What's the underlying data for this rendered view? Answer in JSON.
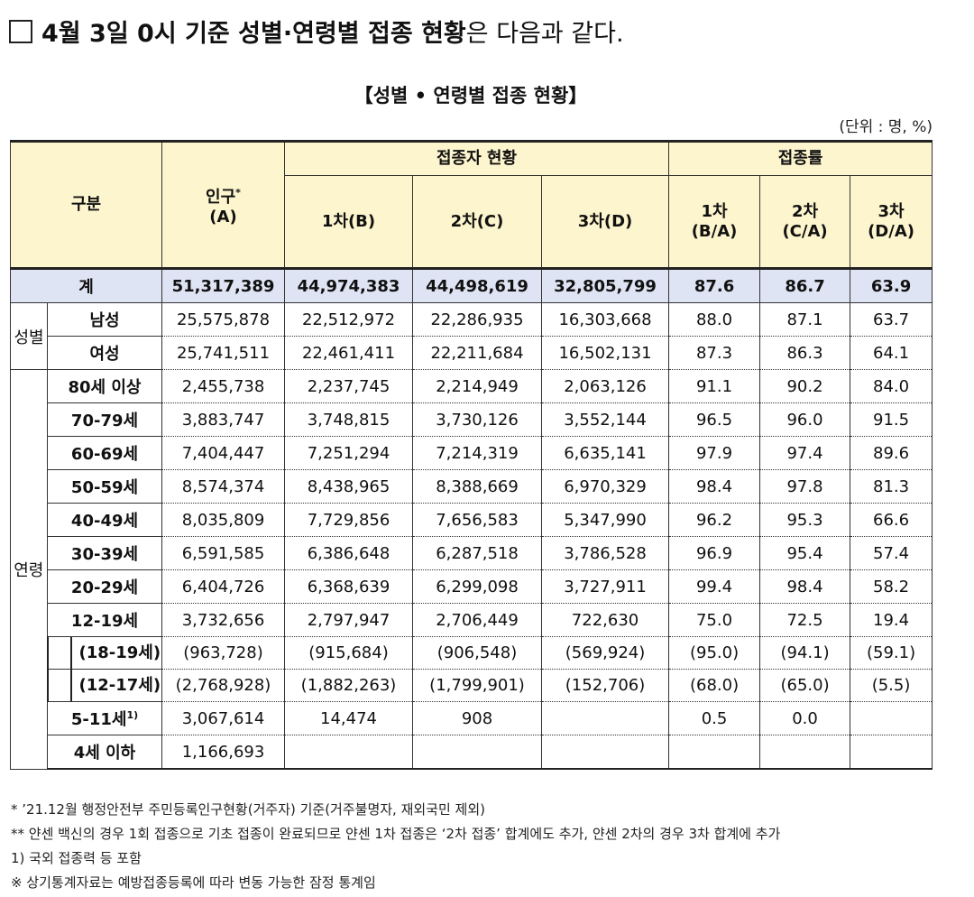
{
  "heading": {
    "box": "□",
    "bold": "4월 3일 0시 기준 성별·연령별 접종 현황",
    "rest": "은 다음과 같다."
  },
  "table_title": "【성별 • 연령별 접종 현황】",
  "unit": "(단위 : 명, %)",
  "header": {
    "category": "구분",
    "population": "인구",
    "population_star": "*",
    "population_sub": "(A)",
    "vaccinated_group": "접종자 현황",
    "rate_group": "접종률",
    "dose1": "1차(B)",
    "dose2": "2차(C)",
    "dose3": "3차(D)",
    "rate1_a": "1차",
    "rate1_b": "(B/A)",
    "rate2_a": "2차",
    "rate2_b": "(C/A)",
    "rate3_a": "3차",
    "rate3_b": "(D/A)"
  },
  "total": {
    "label": "계",
    "values": [
      "51,317,389",
      "44,974,383",
      "44,498,619",
      "32,805,799",
      "87.6",
      "86.7",
      "63.9"
    ]
  },
  "groups": {
    "sex": "성별",
    "age": "연령"
  },
  "sex_rows": [
    {
      "label": "남성",
      "values": [
        "25,575,878",
        "22,512,972",
        "22,286,935",
        "16,303,668",
        "88.0",
        "87.1",
        "63.7"
      ]
    },
    {
      "label": "여성",
      "values": [
        "25,741,511",
        "22,461,411",
        "22,211,684",
        "16,502,131",
        "87.3",
        "86.3",
        "64.1"
      ]
    }
  ],
  "age_rows": [
    {
      "label": "80세 이상",
      "values": [
        "2,455,738",
        "2,237,745",
        "2,214,949",
        "2,063,126",
        "91.1",
        "90.2",
        "84.0"
      ]
    },
    {
      "label": "70-79세",
      "values": [
        "3,883,747",
        "3,748,815",
        "3,730,126",
        "3,552,144",
        "96.5",
        "96.0",
        "91.5"
      ]
    },
    {
      "label": "60-69세",
      "values": [
        "7,404,447",
        "7,251,294",
        "7,214,319",
        "6,635,141",
        "97.9",
        "97.4",
        "89.6"
      ]
    },
    {
      "label": "50-59세",
      "values": [
        "8,574,374",
        "8,438,965",
        "8,388,669",
        "6,970,329",
        "98.4",
        "97.8",
        "81.3"
      ]
    },
    {
      "label": "40-49세",
      "values": [
        "8,035,809",
        "7,729,856",
        "7,656,583",
        "5,347,990",
        "96.2",
        "95.3",
        "66.6"
      ]
    },
    {
      "label": "30-39세",
      "values": [
        "6,591,585",
        "6,386,648",
        "6,287,518",
        "3,786,528",
        "96.9",
        "95.4",
        "57.4"
      ]
    },
    {
      "label": "20-29세",
      "values": [
        "6,404,726",
        "6,368,639",
        "6,299,098",
        "3,727,911",
        "99.4",
        "98.4",
        "58.2"
      ]
    },
    {
      "label": "12-19세",
      "values": [
        "3,732,656",
        "2,797,947",
        "2,706,449",
        "722,630",
        "75.0",
        "72.5",
        "19.4"
      ]
    }
  ],
  "sub_rows": [
    {
      "label": "(18-19세)",
      "values": [
        "(963,728)",
        "(915,684)",
        "(906,548)",
        "(569,924)",
        "(95.0)",
        "(94.1)",
        "(59.1)"
      ]
    },
    {
      "label": "(12-17세)",
      "values": [
        "(2,768,928)",
        "(1,882,263)",
        "(1,799,901)",
        "(152,706)",
        "(68.0)",
        "(65.0)",
        "(5.5)"
      ]
    }
  ],
  "tail_rows": [
    {
      "label": "5-11세",
      "sup": "1)",
      "values": [
        "3,067,614",
        "14,474",
        "908",
        "",
        "0.5",
        "0.0",
        ""
      ]
    },
    {
      "label": "4세 이하",
      "sup": "",
      "values": [
        "1,166,693",
        "",
        "",
        "",
        "",
        "",
        ""
      ]
    }
  ],
  "notes": [
    "* ’21.12월 행정안전부 주민등록인구현황(거주자) 기준(거주불명자, 재외국민 제외)",
    "** 얀센 백신의 경우 1회 접종으로 기초 접종이 완료되므로 얀센 1차 접종은 ‘2차 접종’ 합계에도 추가, 얀센 2차의 경우 3차 합계에 추가",
    "1) 국외 접종력 등 포함",
    "※ 상기통계자료는 예방접종등록에 따라 변동 가능한 잠정 통계임"
  ]
}
